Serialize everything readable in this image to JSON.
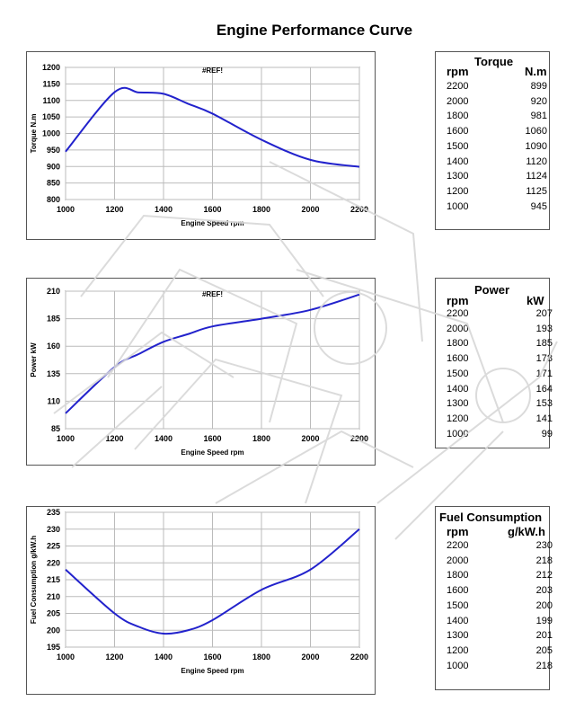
{
  "page_title": "Engine Performance Curve",
  "colors": {
    "curve": "#2222cc",
    "grid": "#bbbbbb",
    "frame": "#555555"
  },
  "chart_data": [
    {
      "type": "line",
      "title": "#REF!",
      "xlabel": "Engine Speed rpm",
      "ylabel": "Torque N.m",
      "xlim": [
        1000,
        2200
      ],
      "ylim": [
        800,
        1200
      ],
      "xticks": [
        1000,
        1200,
        1400,
        1600,
        1800,
        2000,
        2200
      ],
      "yticks": [
        800,
        850,
        900,
        950,
        1000,
        1050,
        1100,
        1150,
        1200
      ],
      "grid": true,
      "x": [
        1000,
        1200,
        1300,
        1400,
        1500,
        1600,
        1800,
        2000,
        2200
      ],
      "y": [
        945,
        1125,
        1124,
        1120,
        1090,
        1060,
        981,
        920,
        899
      ]
    },
    {
      "type": "line",
      "title": "#REF!",
      "xlabel": "Engine Speed rpm",
      "ylabel": "Power kW",
      "xlim": [
        1000,
        2200
      ],
      "ylim": [
        85,
        210
      ],
      "xticks": [
        1000,
        1200,
        1400,
        1600,
        1800,
        2000,
        2200
      ],
      "yticks": [
        85,
        110,
        135,
        160,
        185,
        210
      ],
      "grid": true,
      "x": [
        1000,
        1200,
        1300,
        1400,
        1500,
        1600,
        1800,
        2000,
        2200
      ],
      "y": [
        99,
        141,
        153,
        164,
        171,
        178,
        185,
        193,
        207
      ]
    },
    {
      "type": "line",
      "title": "",
      "xlabel": "Engine Speed rpm",
      "ylabel": "Fuel Consumption g/kW.h",
      "xlim": [
        1000,
        2200
      ],
      "ylim": [
        195,
        235
      ],
      "xticks": [
        1000,
        1200,
        1400,
        1600,
        1800,
        2000,
        2200
      ],
      "yticks": [
        195,
        200,
        205,
        210,
        215,
        220,
        225,
        230,
        235
      ],
      "grid": true,
      "x": [
        1000,
        1200,
        1300,
        1400,
        1500,
        1600,
        1800,
        2000,
        2200
      ],
      "y": [
        218,
        205,
        201,
        199,
        200,
        203,
        212,
        218,
        230
      ]
    }
  ],
  "tables": [
    {
      "title": "Torque",
      "col1": "rpm",
      "col2": "N.m",
      "rows": [
        [
          "2200",
          "899"
        ],
        [
          "2000",
          "920"
        ],
        [
          "1800",
          "981"
        ],
        [
          "1600",
          "1060"
        ],
        [
          "1500",
          "1090"
        ],
        [
          "1400",
          "1120"
        ],
        [
          "1300",
          "1124"
        ],
        [
          "1200",
          "1125"
        ],
        [
          "1000",
          "945"
        ]
      ]
    },
    {
      "title": "Power",
      "col1": "rpm",
      "col2": "kW",
      "rows": [
        [
          "2200",
          "207"
        ],
        [
          "2000",
          "193"
        ],
        [
          "1800",
          "185"
        ],
        [
          "1600",
          "178"
        ],
        [
          "1500",
          "171"
        ],
        [
          "1400",
          "164"
        ],
        [
          "1300",
          "153"
        ],
        [
          "1200",
          "141"
        ],
        [
          "1000",
          "99"
        ]
      ]
    },
    {
      "title": "Fuel Consumption",
      "col1": "rpm",
      "col2": "g/kW.h",
      "rows": [
        [
          "2200",
          "230"
        ],
        [
          "2000",
          "218"
        ],
        [
          "1800",
          "212"
        ],
        [
          "1600",
          "203"
        ],
        [
          "1500",
          "200"
        ],
        [
          "1400",
          "199"
        ],
        [
          "1300",
          "201"
        ],
        [
          "1200",
          "205"
        ],
        [
          "1000",
          "218"
        ]
      ]
    }
  ]
}
